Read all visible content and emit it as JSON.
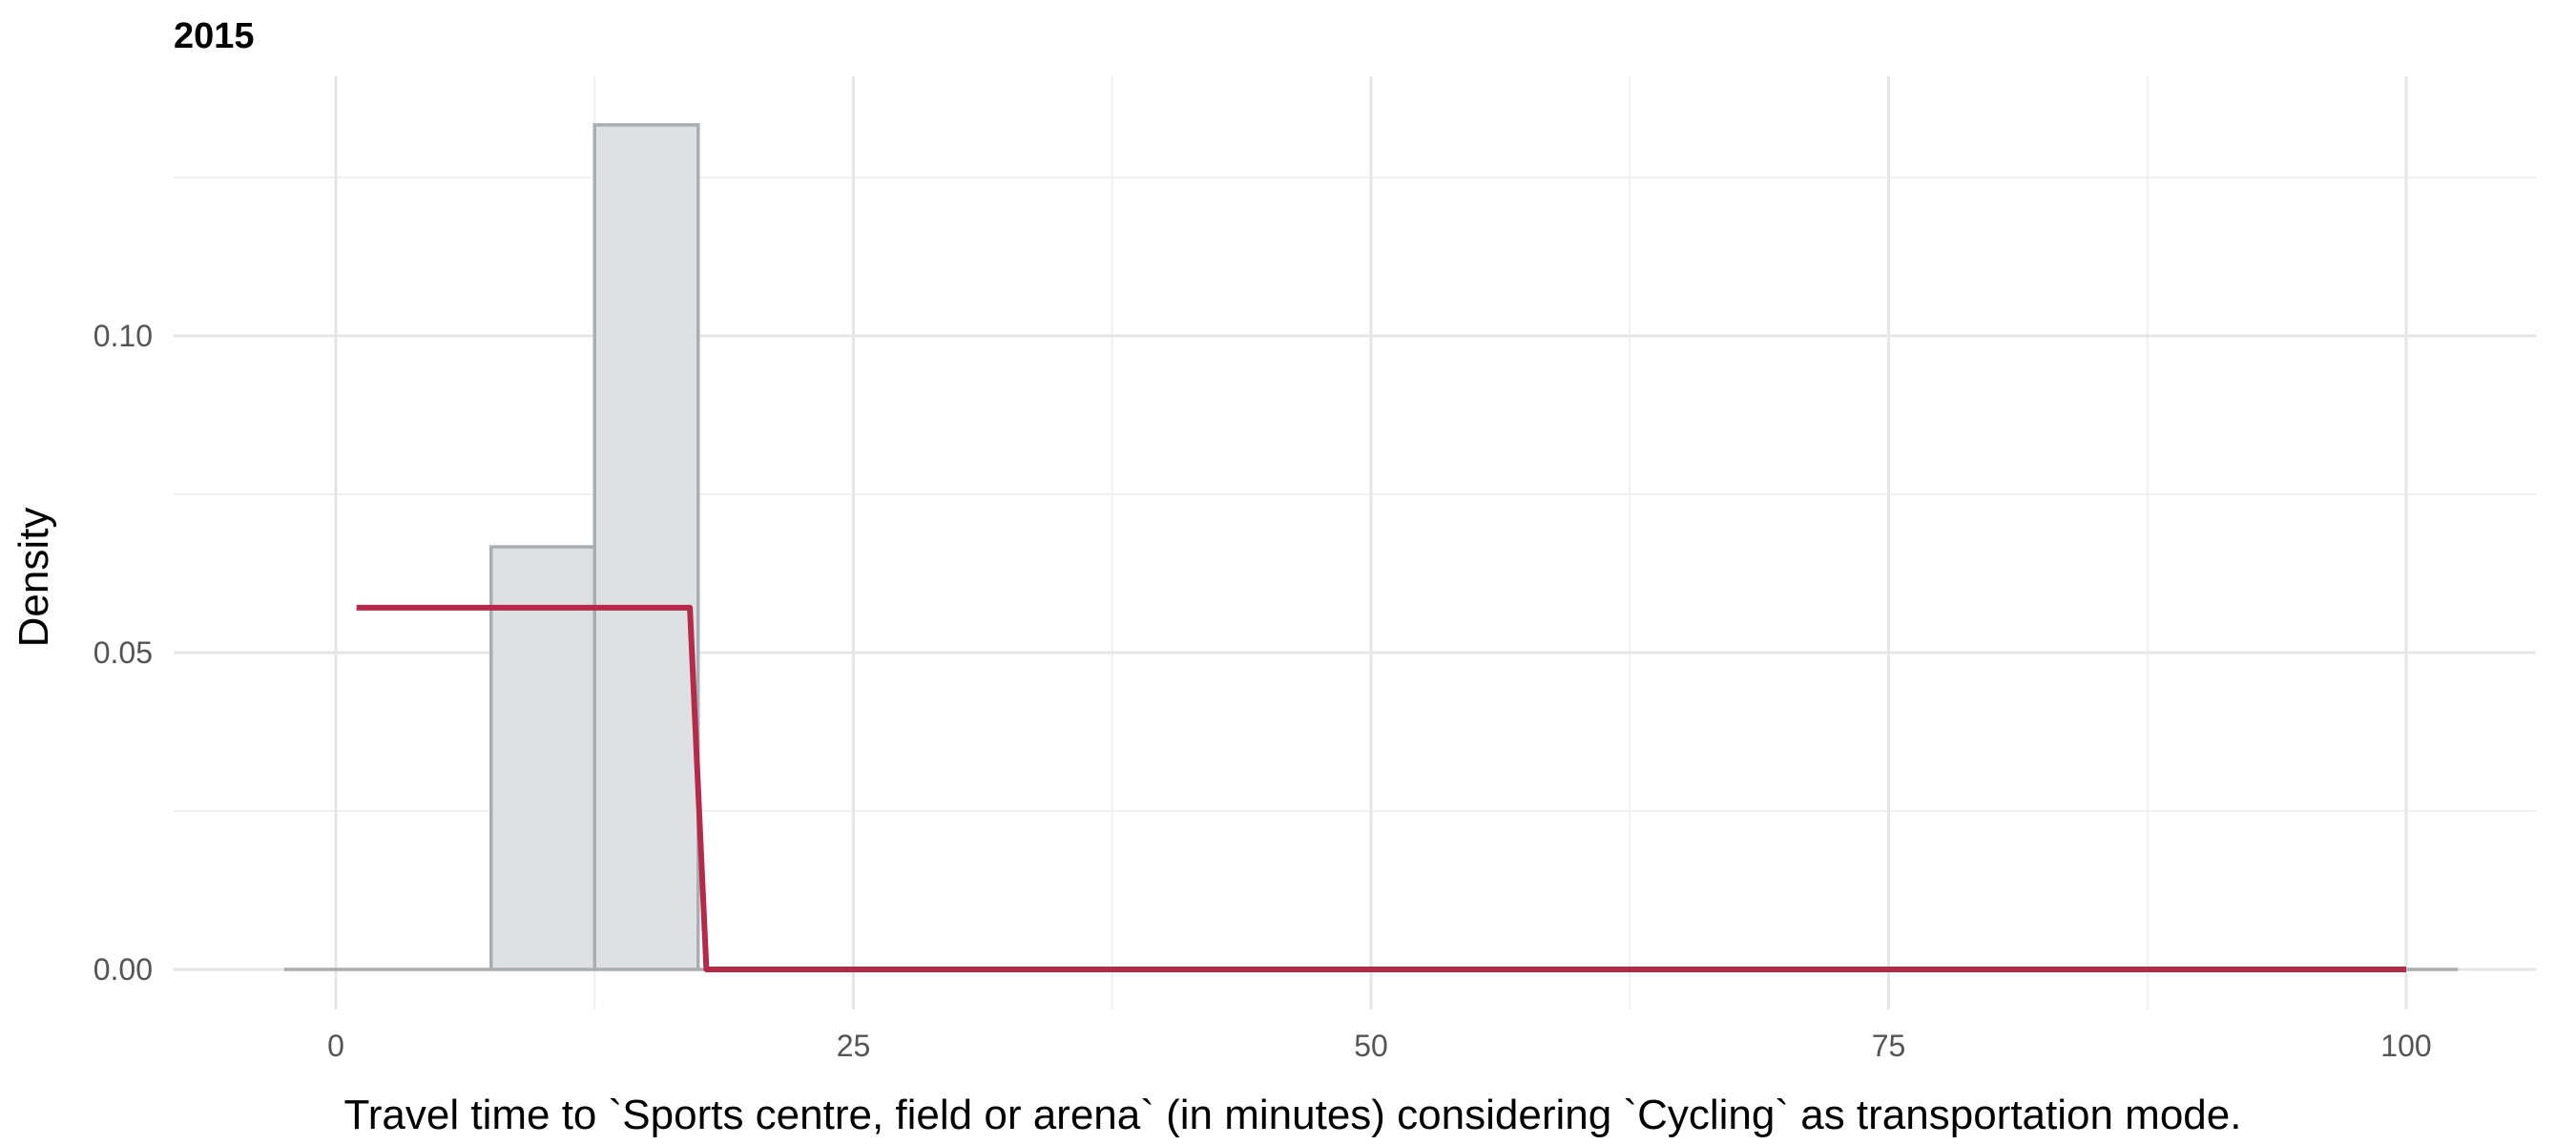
{
  "chart_data": {
    "type": "bar",
    "title": "2015",
    "xlabel": "Travel time to `Sports centre, field or arena` (in minutes) considering `Cycling` as transportation mode.",
    "ylabel": "Density",
    "xlim": [
      -5,
      105
    ],
    "ylim": [
      -0.007,
      0.136
    ],
    "x_ticks": [
      0,
      25,
      50,
      75,
      100
    ],
    "x_tick_labels": [
      "0",
      "25",
      "50",
      "75",
      "100"
    ],
    "y_ticks": [
      0.0,
      0.05,
      0.1
    ],
    "y_tick_labels": [
      "0.00",
      "0.05",
      "0.10"
    ],
    "grid": true,
    "histogram": {
      "bins": [
        {
          "x0": -2.5,
          "x1": 7.5,
          "density": 0.0
        },
        {
          "x0": 7.5,
          "x1": 12.5,
          "density": 0.0667
        },
        {
          "x0": 12.5,
          "x1": 17.5,
          "density": 0.1333
        },
        {
          "x0": 17.5,
          "x1": 102.5,
          "density": 0.0
        }
      ]
    },
    "series": [
      {
        "type": "line",
        "x": [
          1,
          17.1,
          17.9,
          100
        ],
        "y": [
          0.0571,
          0.0571,
          0.0,
          0.0
        ]
      }
    ],
    "colors": {
      "bar_fill": "#dde1e4",
      "bar_outline": "#a9aeb2",
      "line": "#b5294a"
    }
  }
}
